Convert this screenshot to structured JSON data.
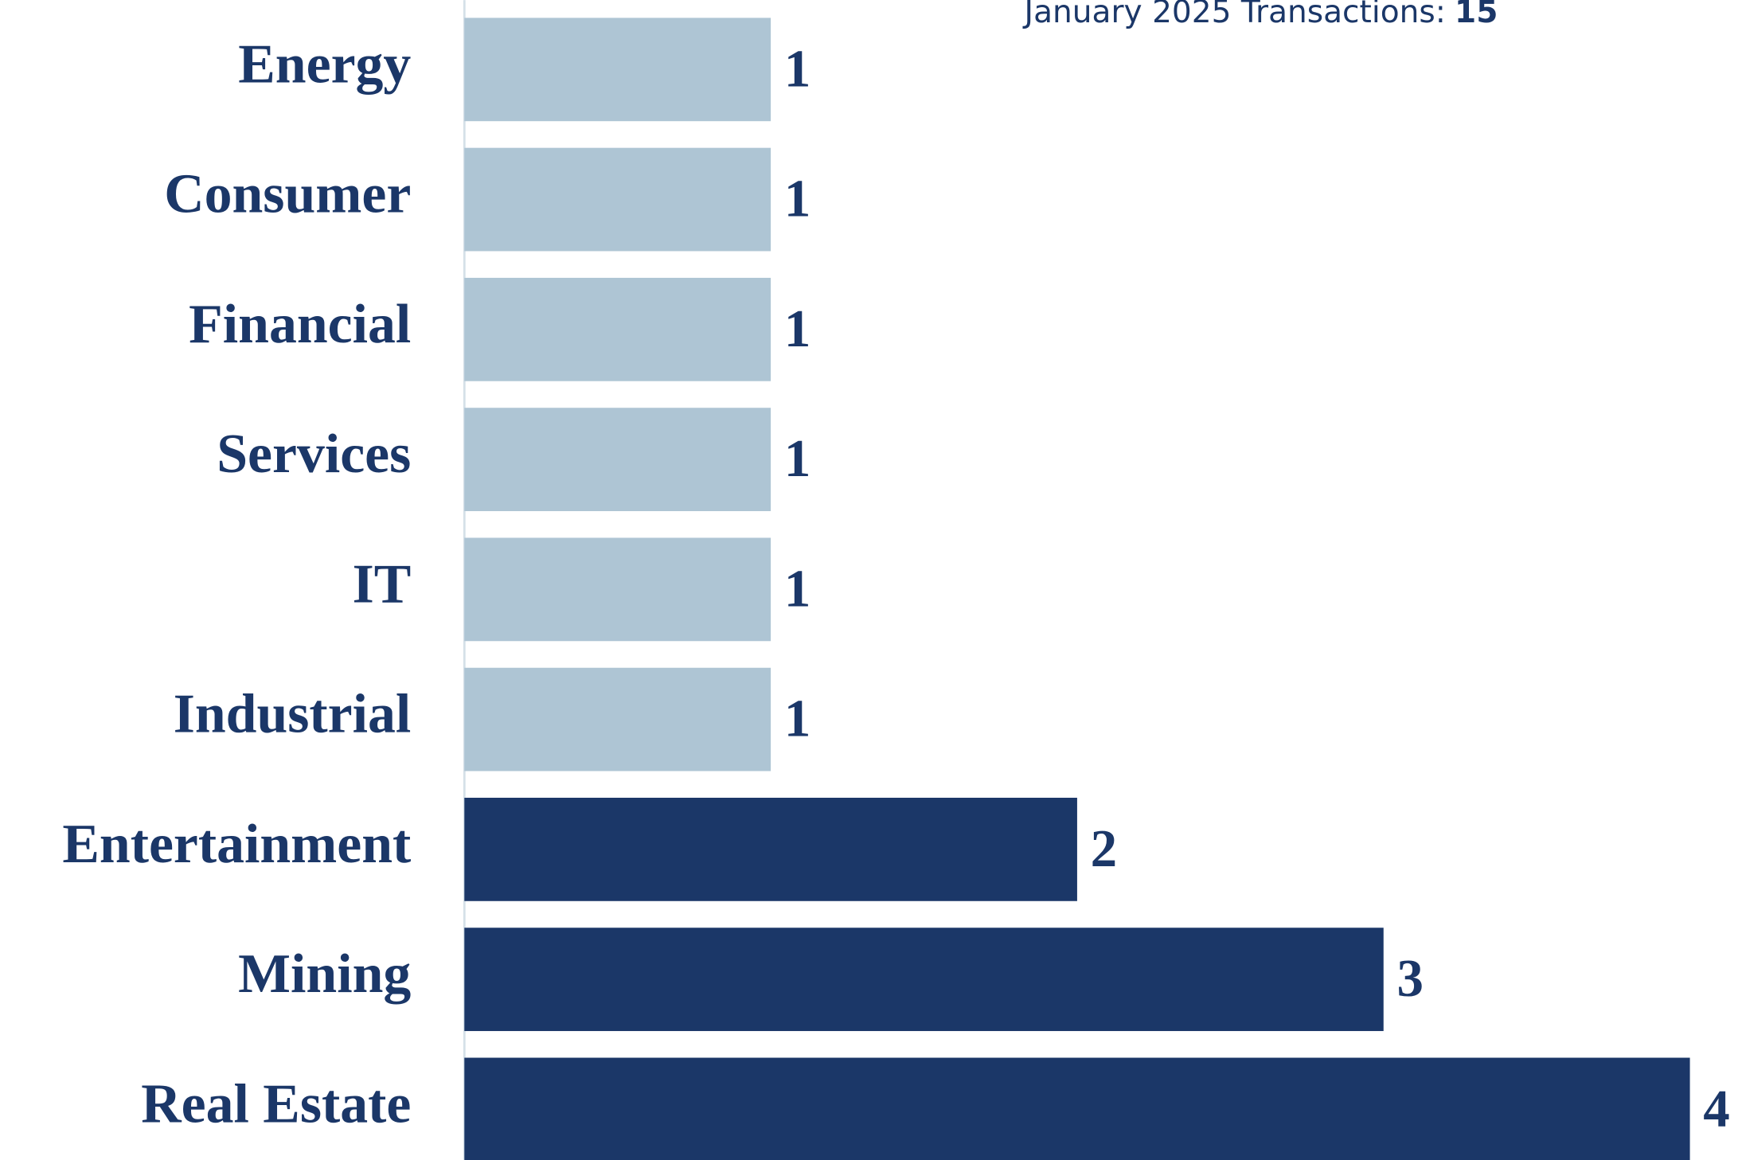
{
  "chart_data": {
    "type": "bar",
    "orientation": "horizontal",
    "annotation": {
      "text": "January 2025 Transactions:",
      "value": 15
    },
    "categories": [
      "Energy",
      "Consumer",
      "Financial",
      "Services",
      "IT",
      "Industrial",
      "Entertainment",
      "Mining",
      "Real Estate"
    ],
    "values": [
      1,
      1,
      1,
      1,
      1,
      1,
      2,
      3,
      4
    ],
    "colors": [
      "#aec5d4",
      "#aec5d4",
      "#aec5d4",
      "#aec5d4",
      "#aec5d4",
      "#aec5d4",
      "#1b3768",
      "#1b3768",
      "#1b3768"
    ],
    "xlim": [
      0,
      4.17
    ]
  }
}
